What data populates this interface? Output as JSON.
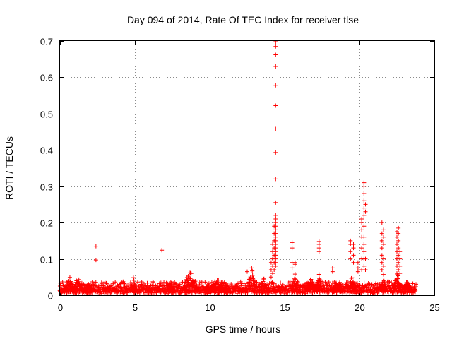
{
  "chart_data": {
    "type": "scatter",
    "title": "Day 094 of 2014, Rate Of TEC Index for receiver tlse",
    "xlabel": "GPS time / hours",
    "ylabel": "ROTI / TECUs",
    "xlim": [
      0,
      25
    ],
    "ylim": [
      0,
      0.7
    ],
    "grid": true,
    "marker": "plus",
    "color": "#ff0000",
    "x_ticks": [
      {
        "value": 0,
        "label": "0"
      },
      {
        "value": 5,
        "label": "5"
      },
      {
        "value": 10,
        "label": "10"
      },
      {
        "value": 15,
        "label": "15"
      },
      {
        "value": 20,
        "label": "20"
      },
      {
        "value": 25,
        "label": "25"
      }
    ],
    "y_ticks": [
      {
        "value": 0,
        "label": "0"
      },
      {
        "value": 0.1,
        "label": "0.1"
      },
      {
        "value": 0.2,
        "label": "0.2"
      },
      {
        "value": 0.3,
        "label": "0.3"
      },
      {
        "value": 0.4,
        "label": "0.4"
      },
      {
        "value": 0.5,
        "label": "0.5"
      },
      {
        "value": 0.6,
        "label": "0.6"
      },
      {
        "value": 0.7,
        "label": "0.7"
      }
    ],
    "baseline": {
      "x_range": [
        0,
        23.8
      ],
      "step": 0.05,
      "levels": [
        0.012,
        0.02,
        0.028
      ]
    },
    "bumps": [
      {
        "x": 0.6,
        "width": 0.5,
        "peak": 0.058
      },
      {
        "x": 1.2,
        "width": 0.6,
        "peak": 0.05
      },
      {
        "x": 1.9,
        "width": 0.4,
        "peak": 0.045
      },
      {
        "x": 4.9,
        "width": 0.3,
        "peak": 0.055
      },
      {
        "x": 7.4,
        "width": 0.4,
        "peak": 0.04
      },
      {
        "x": 8.7,
        "width": 0.9,
        "peak": 0.07
      },
      {
        "x": 10.5,
        "width": 1.5,
        "peak": 0.05
      },
      {
        "x": 12.8,
        "width": 0.4,
        "peak": 0.085
      },
      {
        "x": 13.6,
        "width": 0.4,
        "peak": 0.06
      },
      {
        "x": 15.7,
        "width": 0.4,
        "peak": 0.06
      },
      {
        "x": 16.8,
        "width": 0.8,
        "peak": 0.05
      },
      {
        "x": 17.3,
        "width": 0.3,
        "peak": 0.07
      },
      {
        "x": 18.5,
        "width": 0.6,
        "peak": 0.05
      },
      {
        "x": 19.5,
        "width": 0.4,
        "peak": 0.06
      },
      {
        "x": 21.6,
        "width": 0.3,
        "peak": 0.06
      },
      {
        "x": 22.5,
        "width": 0.5,
        "peak": 0.07
      },
      {
        "x": 23.2,
        "width": 0.6,
        "peak": 0.04
      }
    ],
    "spikes": [
      {
        "x": 14.4,
        "values": [
          0.08,
          0.09,
          0.1,
          0.11,
          0.12,
          0.13,
          0.14,
          0.15,
          0.16,
          0.17,
          0.18,
          0.19,
          0.2,
          0.21,
          0.22,
          0.255,
          0.32,
          0.393,
          0.458,
          0.522,
          0.578,
          0.63,
          0.662,
          0.685,
          0.698
        ]
      },
      {
        "x": 14.3,
        "values": [
          0.07,
          0.09,
          0.11,
          0.13,
          0.15,
          0.17,
          0.19
        ]
      },
      {
        "x": 14.2,
        "values": [
          0.06,
          0.08,
          0.1,
          0.12,
          0.14
        ]
      },
      {
        "x": 14.1,
        "values": [
          0.05,
          0.07,
          0.09
        ]
      },
      {
        "x": 15.5,
        "values": [
          0.075,
          0.09,
          0.13,
          0.145
        ]
      },
      {
        "x": 15.7,
        "values": [
          0.085,
          0.09
        ]
      },
      {
        "x": 17.3,
        "values": [
          0.12,
          0.13,
          0.14,
          0.148
        ]
      },
      {
        "x": 19.4,
        "values": [
          0.1,
          0.12,
          0.14,
          0.15
        ]
      },
      {
        "x": 19.6,
        "values": [
          0.09,
          0.11,
          0.13,
          0.14
        ]
      },
      {
        "x": 20.15,
        "values": [
          0.07,
          0.1,
          0.13,
          0.16,
          0.18,
          0.2,
          0.21
        ]
      },
      {
        "x": 20.3,
        "values": [
          0.08,
          0.1,
          0.12,
          0.14,
          0.16,
          0.19,
          0.22,
          0.24,
          0.26,
          0.28,
          0.3,
          0.31
        ]
      },
      {
        "x": 20.4,
        "values": [
          0.07,
          0.1,
          0.23,
          0.25
        ]
      },
      {
        "x": 21.5,
        "values": [
          0.07,
          0.09,
          0.11,
          0.13,
          0.15,
          0.17,
          0.2
        ]
      },
      {
        "x": 21.6,
        "values": [
          0.08,
          0.1,
          0.14,
          0.16,
          0.18
        ]
      },
      {
        "x": 22.5,
        "values": [
          0.06,
          0.08,
          0.1,
          0.12,
          0.14,
          0.16,
          0.175
        ]
      },
      {
        "x": 22.6,
        "values": [
          0.07,
          0.09,
          0.11,
          0.13,
          0.15,
          0.17,
          0.185
        ]
      },
      {
        "x": 22.7,
        "values": [
          0.06,
          0.08,
          0.1,
          0.12
        ]
      },
      {
        "x": 2.4,
        "values": [
          0.097,
          0.135
        ]
      },
      {
        "x": 6.8,
        "values": [
          0.124
        ]
      },
      {
        "x": 19.9,
        "values": [
          0.065,
          0.075,
          0.09
        ]
      },
      {
        "x": 18.2,
        "values": [
          0.065,
          0.075
        ]
      },
      {
        "x": 12.5,
        "values": [
          0.065
        ]
      }
    ]
  }
}
